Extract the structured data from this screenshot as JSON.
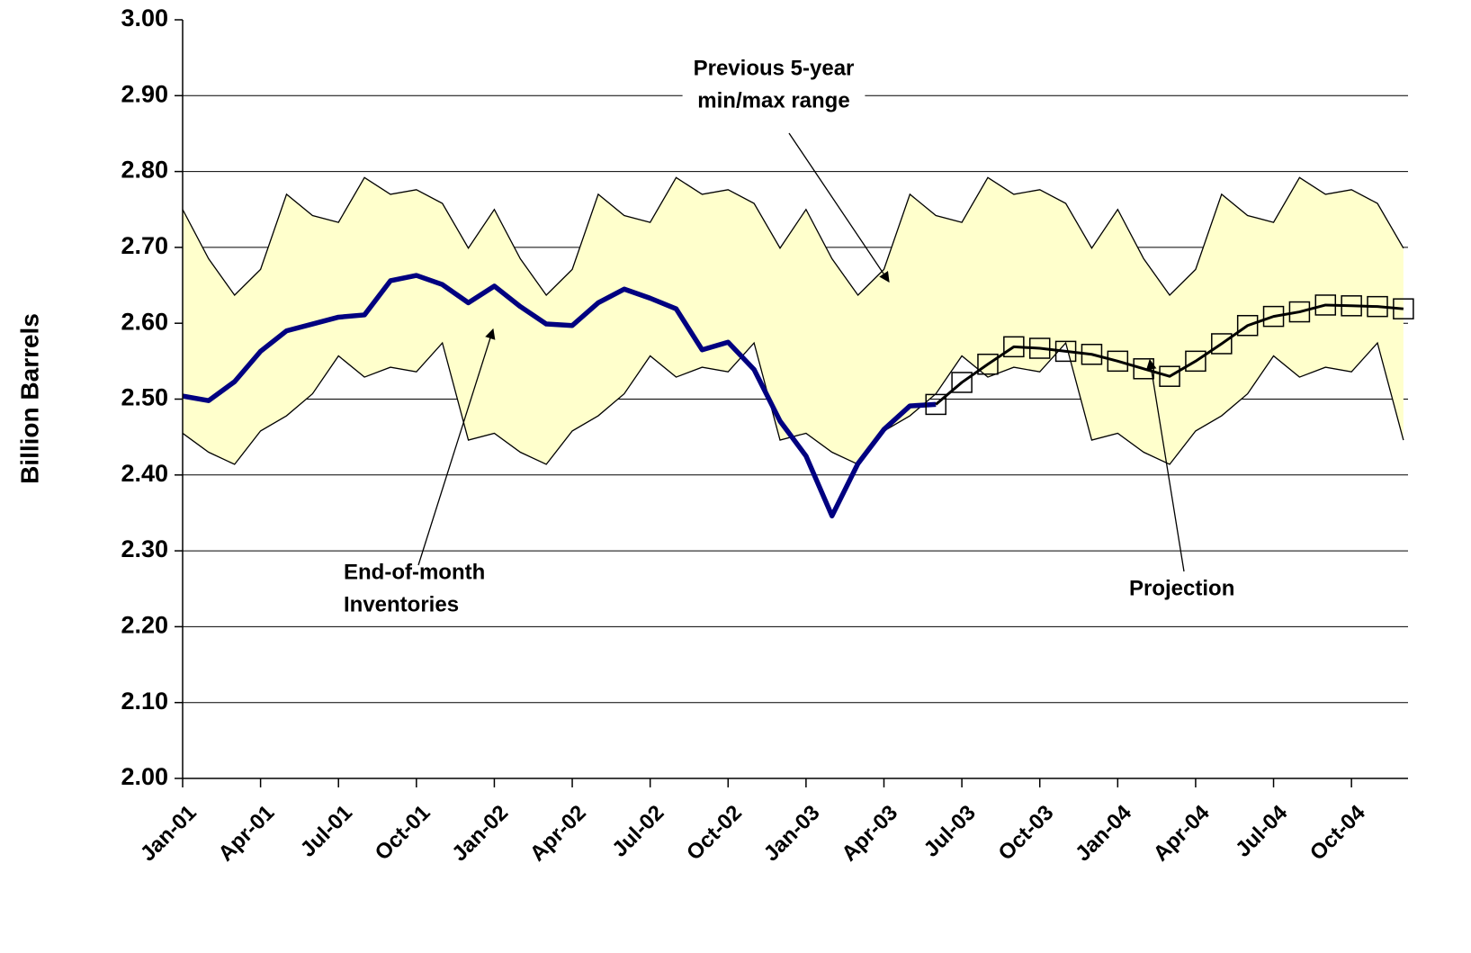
{
  "chart_data": {
    "type": "line",
    "y_label": "Billion Barrels",
    "categories": [
      "Jan-01",
      null,
      null,
      "Apr-01",
      null,
      null,
      "Jul-01",
      null,
      null,
      "Oct-01",
      null,
      null,
      "Jan-02",
      null,
      null,
      "Apr-02",
      null,
      null,
      "Jul-02",
      null,
      null,
      "Oct-02",
      null,
      null,
      "Jan-03",
      null,
      null,
      "Apr-03",
      null,
      null,
      "Jul-03",
      null,
      null,
      "Oct-03",
      null,
      null,
      "Jan-04",
      null,
      null,
      "Apr-04",
      null,
      null,
      "Jul-04",
      null,
      null,
      "Oct-04",
      null,
      null
    ],
    "band": {
      "color": "#ffffcc",
      "upper": {
        "color": "#000000",
        "values": [
          2.75,
          2.685,
          2.637,
          2.671,
          2.77,
          2.742,
          2.733,
          2.792,
          2.77,
          2.776,
          2.758,
          2.699,
          2.75,
          2.685,
          2.637,
          2.671,
          2.77,
          2.742,
          2.733,
          2.792,
          2.77,
          2.776,
          2.758,
          2.699,
          2.75,
          2.685,
          2.637,
          2.671,
          2.77,
          2.742,
          2.733,
          2.792,
          2.77,
          2.776,
          2.758,
          2.699,
          2.75,
          2.685,
          2.637,
          2.671,
          2.77,
          2.742,
          2.733,
          2.792,
          2.77,
          2.776,
          2.758,
          2.699
        ]
      },
      "lower": {
        "color": "#000000",
        "values": [
          2.455,
          2.43,
          2.414,
          2.458,
          2.478,
          2.507,
          2.557,
          2.529,
          2.542,
          2.536,
          2.574,
          2.446,
          2.455,
          2.43,
          2.414,
          2.458,
          2.478,
          2.507,
          2.557,
          2.529,
          2.542,
          2.536,
          2.574,
          2.446,
          2.455,
          2.43,
          2.414,
          2.458,
          2.478,
          2.507,
          2.557,
          2.529,
          2.542,
          2.536,
          2.574,
          2.446,
          2.455,
          2.43,
          2.414,
          2.458,
          2.478,
          2.507,
          2.557,
          2.529,
          2.542,
          2.536,
          2.574,
          2.446
        ]
      }
    },
    "series": [
      {
        "color": "#000080",
        "values": [
          2.504,
          2.498,
          2.523,
          2.563,
          2.59,
          2.599,
          2.608,
          2.611,
          2.656,
          2.663,
          2.651,
          2.627,
          2.649,
          2.622,
          2.599,
          2.597,
          2.627,
          2.645,
          2.633,
          2.619,
          2.565,
          2.575,
          2.539,
          2.471,
          2.425,
          2.346,
          2.415,
          2.46,
          2.491,
          2.493,
          null,
          null,
          null,
          null,
          null,
          null,
          null,
          null,
          null,
          null,
          null,
          null,
          null,
          null,
          null,
          null,
          null,
          null
        ]
      },
      {
        "color": "#000000",
        "marker": "square",
        "values": [
          null,
          null,
          null,
          null,
          null,
          null,
          null,
          null,
          null,
          null,
          null,
          null,
          null,
          null,
          null,
          null,
          null,
          null,
          null,
          null,
          null,
          null,
          null,
          null,
          null,
          null,
          null,
          null,
          null,
          2.493,
          2.522,
          2.546,
          2.569,
          2.567,
          2.563,
          2.559,
          2.55,
          2.54,
          2.53,
          2.55,
          2.573,
          2.597,
          2.609,
          2.615,
          2.624,
          2.623,
          2.622,
          2.619
        ]
      }
    ],
    "ylim": [
      2.0,
      3.0
    ],
    "yticks": [
      {
        "value": 2.0,
        "label": "2.00"
      },
      {
        "value": 2.1,
        "label": "2.10"
      },
      {
        "value": 2.2,
        "label": "2.20"
      },
      {
        "value": 2.3,
        "label": "2.30"
      },
      {
        "value": 2.4,
        "label": "2.40"
      },
      {
        "value": 2.5,
        "label": "2.50"
      },
      {
        "value": 2.6,
        "label": "2.60"
      },
      {
        "value": 2.7,
        "label": "2.70"
      },
      {
        "value": 2.8,
        "label": "2.80"
      },
      {
        "value": 2.9,
        "label": "2.90"
      },
      {
        "value": 3.0,
        "label": "3.00"
      }
    ],
    "grid": true,
    "annotations": [
      {
        "text": [
          "Previous 5-year",
          "min/max range"
        ]
      },
      {
        "text": [
          "End-of-month",
          "Inventories"
        ]
      },
      {
        "text": [
          "Projection"
        ]
      }
    ]
  }
}
